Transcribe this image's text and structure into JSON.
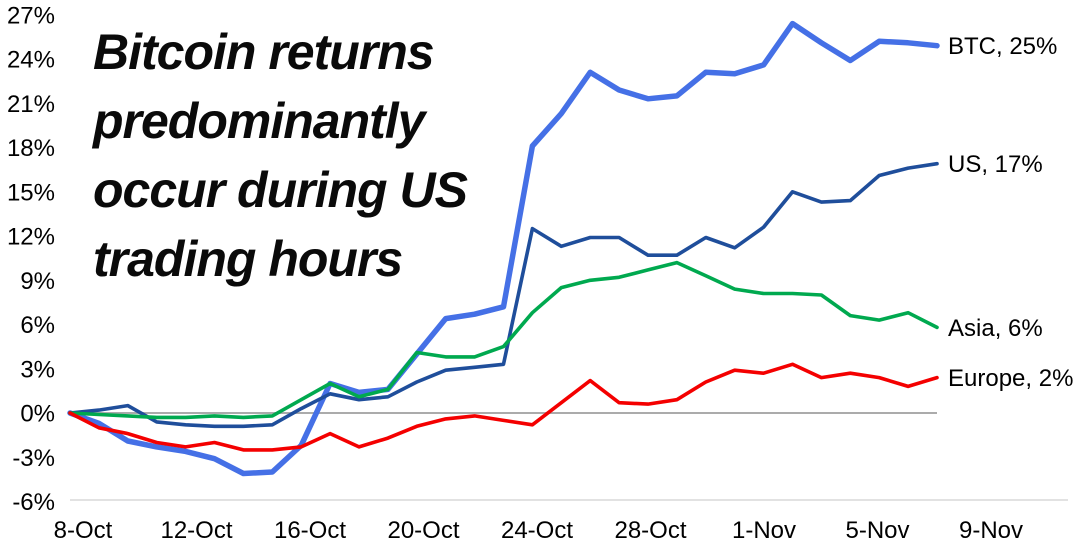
{
  "chart_data": {
    "type": "line",
    "title": "Bitcoin returns predominantly occur during US trading hours",
    "title_lines": [
      "Bitcoin returns",
      "predominantly",
      "occur during US",
      "trading hours"
    ],
    "x_tick_labels": [
      "8-Oct",
      "12-Oct",
      "16-Oct",
      "20-Oct",
      "24-Oct",
      "28-Oct",
      "1-Nov",
      "5-Nov",
      "9-Nov"
    ],
    "y_tick_labels": [
      "27%",
      "24%",
      "21%",
      "18%",
      "15%",
      "12%",
      "9%",
      "6%",
      "3%",
      "0%",
      "-3%",
      "-6%"
    ],
    "y_ticks": [
      27,
      24,
      21,
      18,
      15,
      12,
      9,
      6,
      3,
      0,
      -3,
      -6
    ],
    "ylim": [
      -6,
      27
    ],
    "grid": "horizontal lines at 0% and -6% only",
    "legend_position": "labels at right end of each line",
    "background_color": "#ffffff",
    "zero_line_color": "#ababab",
    "baseline_color": "#e2e2e2",
    "text_color": "#000000",
    "points_per_series": 31,
    "series": [
      {
        "name": "BTC",
        "label": "BTC, 25%",
        "end_value": 25,
        "color": "#4570e6",
        "thick": true,
        "values": [
          0,
          -0.7,
          -1.9,
          -2.3,
          -2.6,
          -3.1,
          -4.1,
          -4.0,
          -2.2,
          2.0,
          1.4,
          1.6,
          4.0,
          6.4,
          6.7,
          7.2,
          18.1,
          20.3,
          23.1,
          21.9,
          21.3,
          21.5,
          23.1,
          23.0,
          23.6,
          26.4,
          25.1,
          23.9,
          25.2,
          25.1,
          24.9
        ]
      },
      {
        "name": "US",
        "label": "US, 17%",
        "end_value": 17,
        "color": "#1f4e9b",
        "thick": false,
        "values": [
          0,
          0.2,
          0.5,
          -0.6,
          -0.8,
          -0.9,
          -0.9,
          -0.8,
          0.3,
          1.3,
          0.9,
          1.1,
          2.1,
          2.9,
          3.1,
          3.3,
          12.5,
          11.3,
          11.9,
          11.9,
          10.7,
          10.7,
          11.9,
          11.2,
          12.6,
          15.0,
          14.3,
          14.4,
          16.1,
          16.6,
          16.9
        ]
      },
      {
        "name": "Asia",
        "label": "Asia, 6%",
        "end_value": 6,
        "color": "#00a94f",
        "thick": false,
        "values": [
          0,
          -0.1,
          -0.2,
          -0.3,
          -0.3,
          -0.2,
          -0.3,
          -0.2,
          0.9,
          2.0,
          1.1,
          1.6,
          4.1,
          3.8,
          3.8,
          4.5,
          6.8,
          8.5,
          9.0,
          9.2,
          9.7,
          10.2,
          9.3,
          8.4,
          8.1,
          8.1,
          8.0,
          6.6,
          6.3,
          6.8,
          5.8
        ]
      },
      {
        "name": "Europe",
        "label": "Europe, 2%",
        "end_value": 2,
        "color": "#f40000",
        "thick": false,
        "values": [
          0,
          -1.0,
          -1.4,
          -2.0,
          -2.3,
          -2.0,
          -2.5,
          -2.5,
          -2.3,
          -1.4,
          -2.3,
          -1.7,
          -0.9,
          -0.4,
          -0.2,
          -0.5,
          -0.8,
          0.7,
          2.2,
          0.7,
          0.6,
          0.9,
          2.1,
          2.9,
          2.7,
          3.3,
          2.4,
          2.7,
          2.4,
          1.8,
          2.4
        ]
      }
    ]
  }
}
